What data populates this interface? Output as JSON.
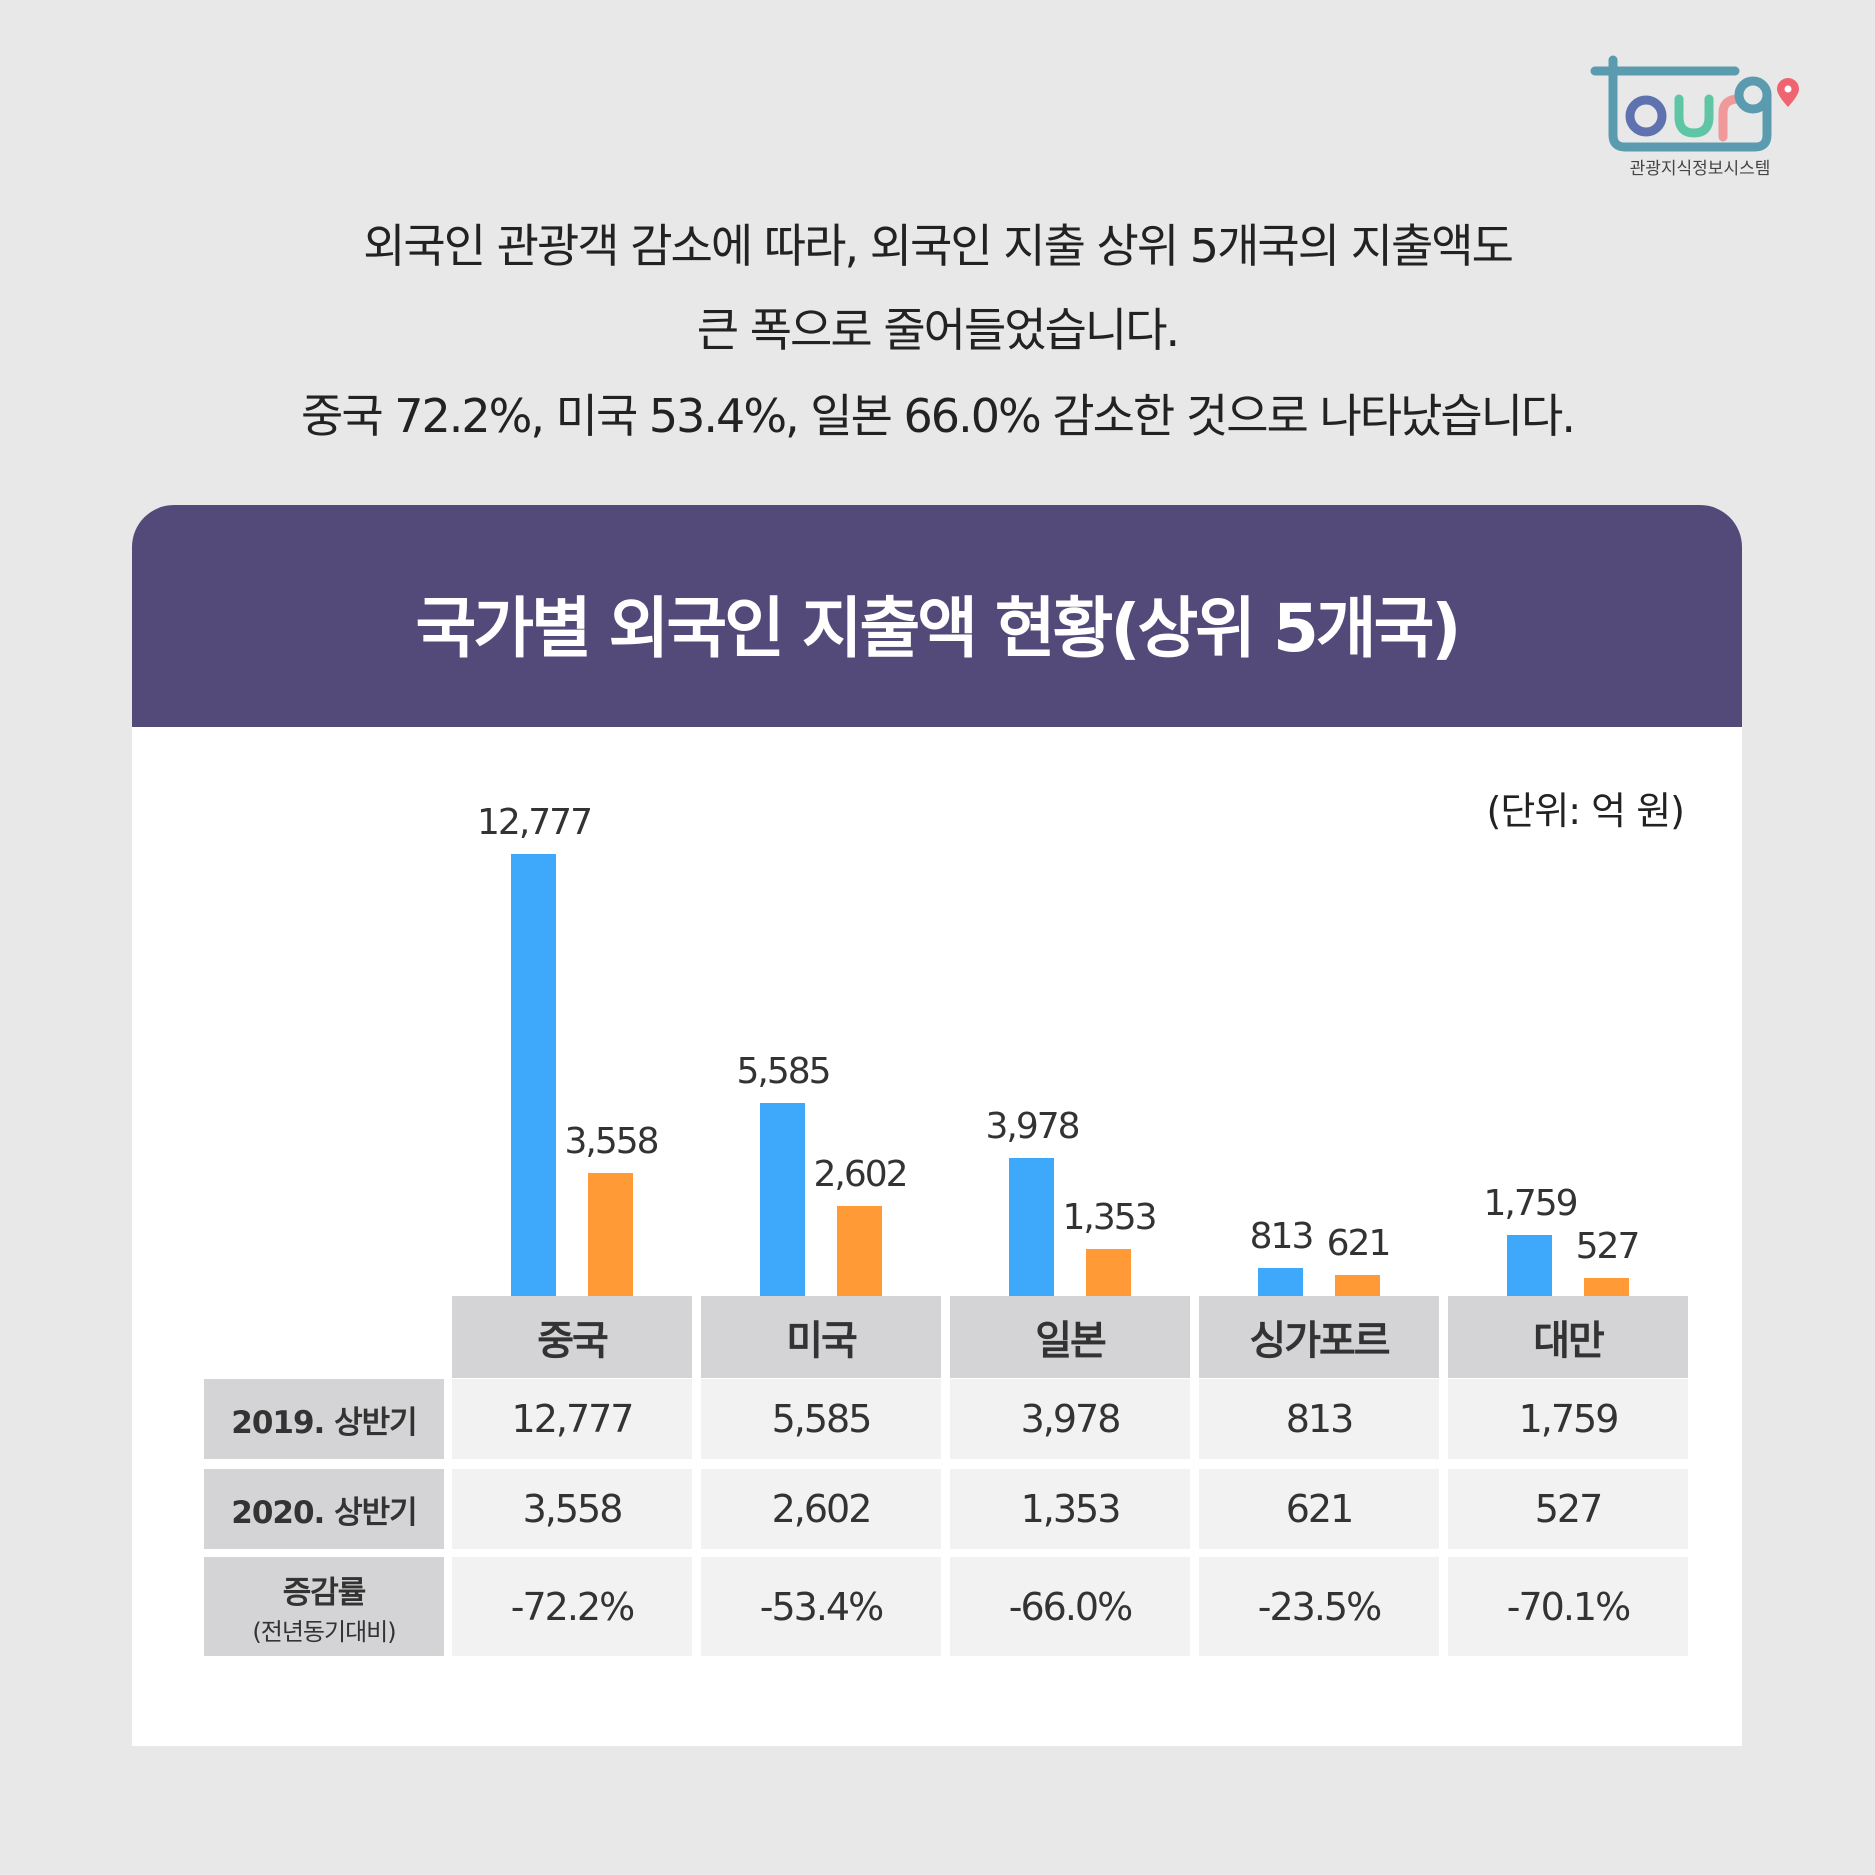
{
  "logo": {
    "text": "tourg",
    "subtitle": "관광지식정보시스템",
    "colors": {
      "frame": "#5b9bb0",
      "o": "#5f72b0",
      "u": "#5ec6a4",
      "r": "#f0999b",
      "pin": "#ef6470"
    }
  },
  "intro": {
    "lines": [
      "외국인 관광객 감소에 따라, 외국인 지출 상위 5개국의 지출액도",
      "큰 폭으로 줄어들었습니다.",
      "중국 72.2%, 미국 53.4%, 일본 66.0% 감소한 것으로 나타났습니다."
    ]
  },
  "card": {
    "title": "국가별 외국인 지출액 현황(상위 5개국)",
    "unit": "(단위: 억 원)",
    "header_color": "#544a7a"
  },
  "chart_data": {
    "type": "bar",
    "categories": [
      "중국",
      "미국",
      "일본",
      "싱가포르",
      "대만"
    ],
    "series": [
      {
        "name": "2019. 상반기",
        "values": [
          12777,
          5585,
          3978,
          813,
          1759
        ],
        "labels": [
          "12,777",
          "5,585",
          "3,978",
          "813",
          "1,759"
        ],
        "color": "#3ea9fb"
      },
      {
        "name": "2020. 상반기",
        "values": [
          3558,
          2602,
          1353,
          621,
          527
        ],
        "labels": [
          "3,558",
          "2,602",
          "1,353",
          "621",
          "527"
        ],
        "color": "#ff9a36"
      }
    ],
    "ylim": [
      0,
      12777
    ],
    "grid": false
  },
  "table": {
    "rows": [
      {
        "label": "2019. 상반기",
        "values": [
          "12,777",
          "5,585",
          "3,978",
          "813",
          "1,759"
        ]
      },
      {
        "label": "2020. 상반기",
        "values": [
          "3,558",
          "2,602",
          "1,353",
          "621",
          "527"
        ]
      },
      {
        "label": "증감률",
        "sublabel": "(전년동기대비)",
        "values": [
          "-72.2%",
          "-53.4%",
          "-66.0%",
          "-23.5%",
          "-70.1%"
        ]
      }
    ]
  }
}
